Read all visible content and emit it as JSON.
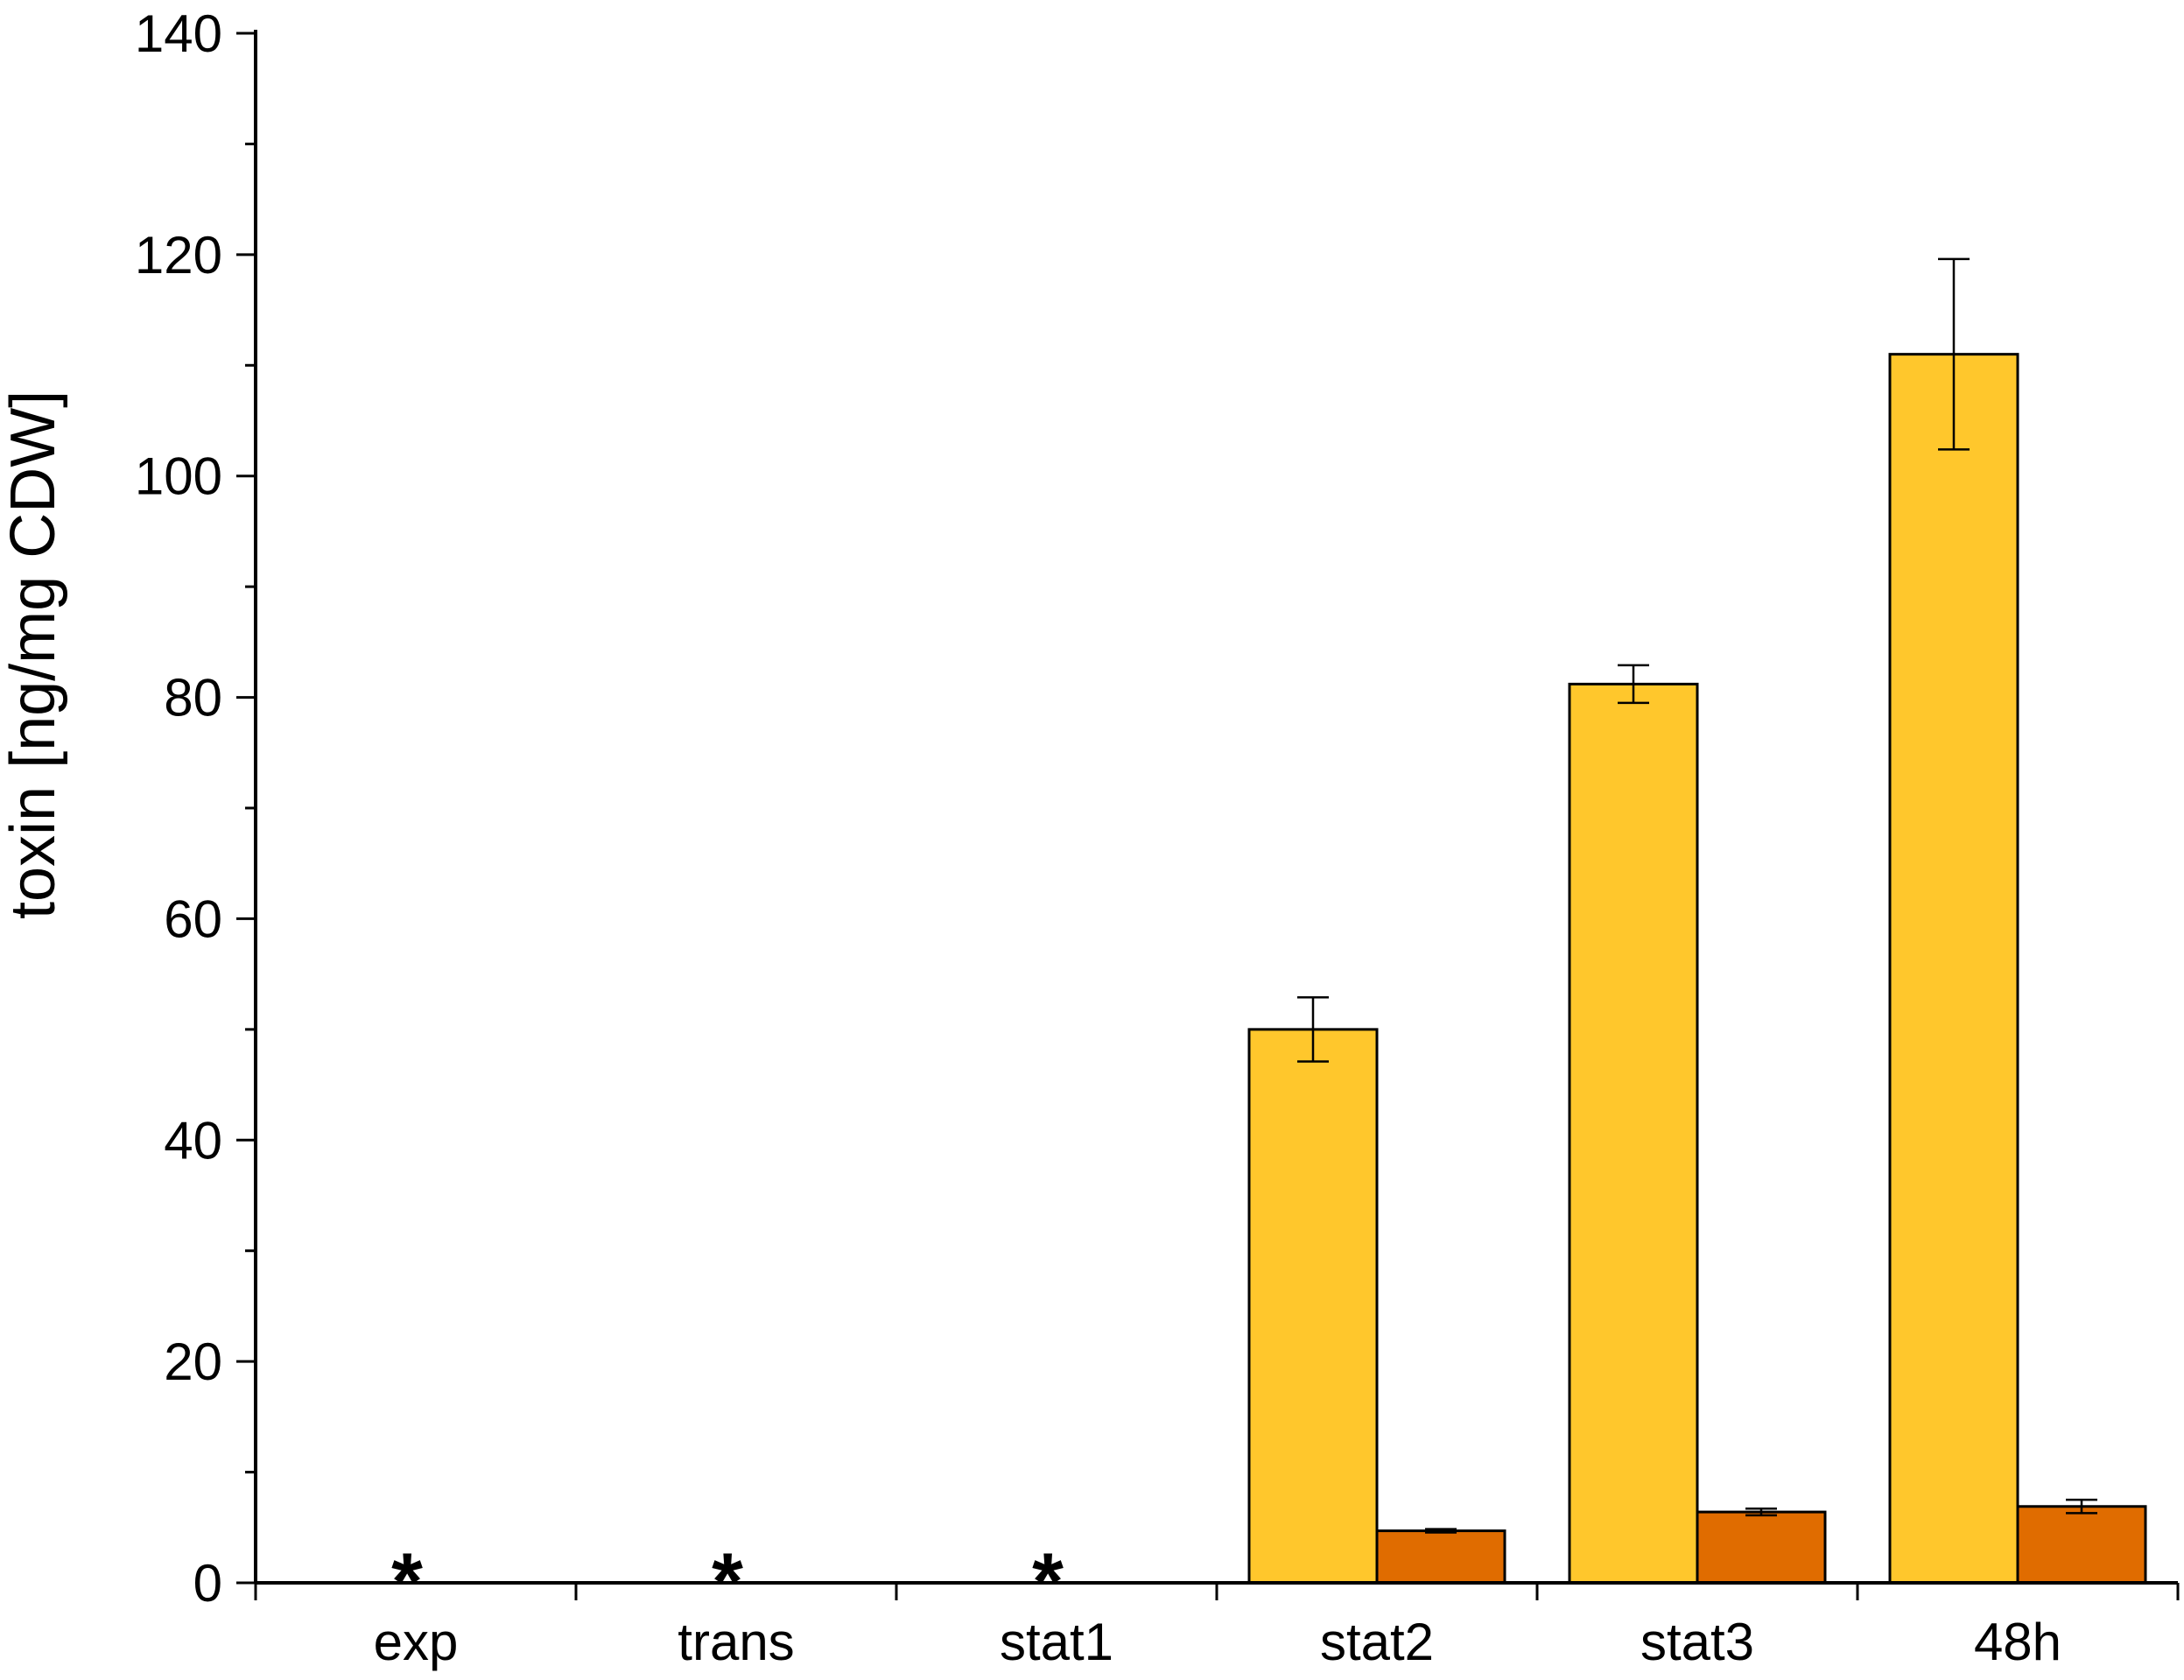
{
  "chart_data": {
    "type": "bar",
    "ylabel": "toxin [ng/mg CDW]",
    "xlabel": "",
    "ylim": [
      0,
      140
    ],
    "y_ticks": [
      0,
      20,
      40,
      60,
      80,
      100,
      120,
      140
    ],
    "y_minor_step": 10,
    "categories": [
      "exp",
      "trans",
      "stat1",
      "stat2",
      "stat3",
      "48h"
    ],
    "series": [
      {
        "color": "#FFC72C",
        "values": [
          null,
          null,
          null,
          50.0,
          81.2,
          111.0
        ],
        "errors": [
          null,
          null,
          null,
          2.9,
          1.7,
          8.6
        ]
      },
      {
        "color": "#E06C00",
        "values": [
          null,
          null,
          null,
          4.7,
          6.4,
          6.9
        ],
        "errors": [
          null,
          null,
          null,
          0.15,
          0.3,
          0.6
        ]
      }
    ],
    "annotations": [
      {
        "category": "exp",
        "text": "*"
      },
      {
        "category": "trans",
        "text": "*"
      },
      {
        "category": "stat1",
        "text": "*"
      }
    ],
    "grid": false,
    "legend": "none"
  }
}
